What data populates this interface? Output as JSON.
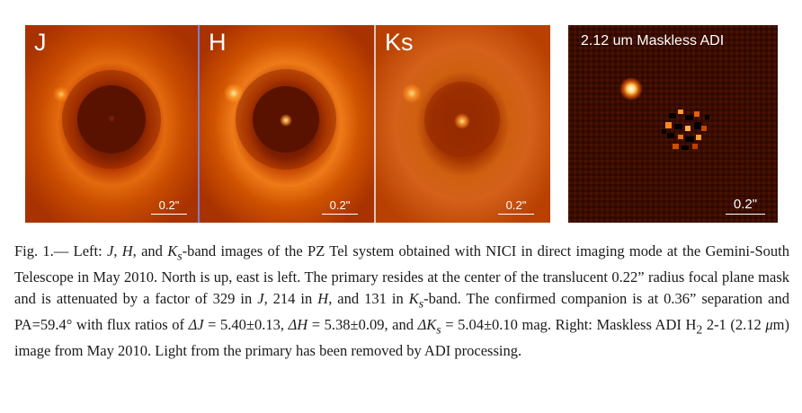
{
  "panels": [
    {
      "band": "J",
      "scale": "0.2\""
    },
    {
      "band": "H",
      "scale": "0.2\""
    },
    {
      "band": "Ks",
      "scale": "0.2\""
    },
    {
      "band": "2.12 um Maskless ADI",
      "scale": "0.2\""
    }
  ],
  "caption": {
    "label": "Fig. 1.— Left: ",
    "s1": "J",
    "s2": ", ",
    "s3": "H",
    "s4": ", and ",
    "s5": "K",
    "s6": "s",
    "s7": "-band images of the PZ Tel system obtained with NICI in direct imaging mode at the Gemini-South Telescope in May 2010. North is up, east is left. The primary resides at the center of the translucent 0.22” radius focal plane mask and is attenuated by a factor of 329 in ",
    "s8": "J",
    "s9": ", 214 in ",
    "s10": "H",
    "s11": ", and 131 in ",
    "s12": "K",
    "s13": "s",
    "s14": "-band. The confirmed companion is at 0.36” separation and PA=59.4° with flux ratios of ",
    "s15": "ΔJ",
    "s16": " = 5.40±0.13, ",
    "s17": "ΔH",
    "s18": " = 5.38±0.09, and ",
    "s19": "ΔK",
    "s20": "s",
    "s21": " = 5.04±0.10 mag. Right: Maskless ADI H",
    "s22": "2",
    "s23": " 2-1 (2.12 ",
    "s24": "μ",
    "s25": "m) image from May 2010. Light from the primary has been removed by ADI processing."
  }
}
